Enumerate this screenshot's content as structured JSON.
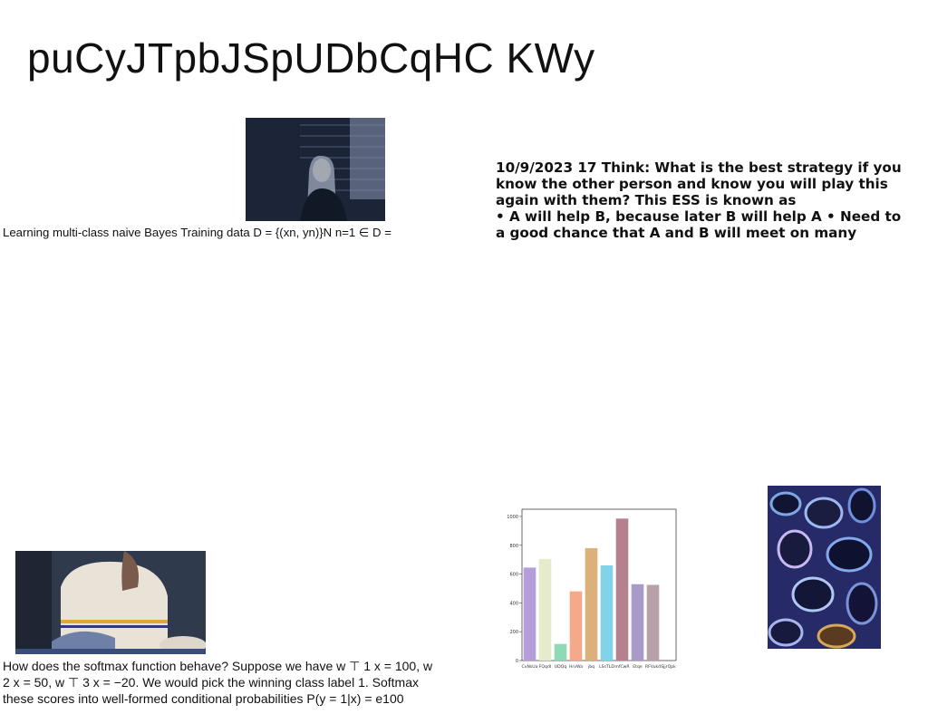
{
  "title": "puCyJTpbJSpUDbCqHC KWy",
  "captions": {
    "bayes": "Learning multi-class naive Bayes Training data D = {(xn, yn)}N n=1 ∈ D =",
    "ess_lines": [
      "10/9/2023 17 Think: What is the best strategy if you",
      "know the other person and know you will play this",
      "again with them? This ESS is known as",
      "• A will help B, because later B will help A • Need to",
      "a good chance that A and B will meet on many"
    ],
    "softmax_lines": [
      "How does the softmax function behave? Suppose we have w ⊤ 1 x = 100, w",
      "2 x = 50, w ⊤ 3 x = −20. We would pick the winning class label 1. Softmax",
      "these scores into well-formed conditional probabilities P(y = 1|x) = e100"
    ]
  },
  "chart_data": {
    "type": "bar",
    "categories": [
      "CvNsUa",
      "FQqdI",
      "UDQq",
      "HrvWa",
      "jbq",
      "LSsTLD",
      "mfCwR",
      "Etqe",
      "RFVukd",
      "SjjrQpk"
    ],
    "values": [
      645,
      705,
      115,
      480,
      780,
      660,
      985,
      530,
      525,
      0
    ],
    "colors": [
      "#b39ddb",
      "#e6ebcc",
      "#8fd9b6",
      "#f4a98a",
      "#dcb07a",
      "#82d3e8",
      "#b5818f",
      "#a99bc8",
      "#b8a0a8",
      "#ffffff"
    ],
    "ylim": [
      0,
      1050
    ],
    "yticks": [
      0,
      200,
      400,
      600,
      800,
      1000
    ]
  }
}
